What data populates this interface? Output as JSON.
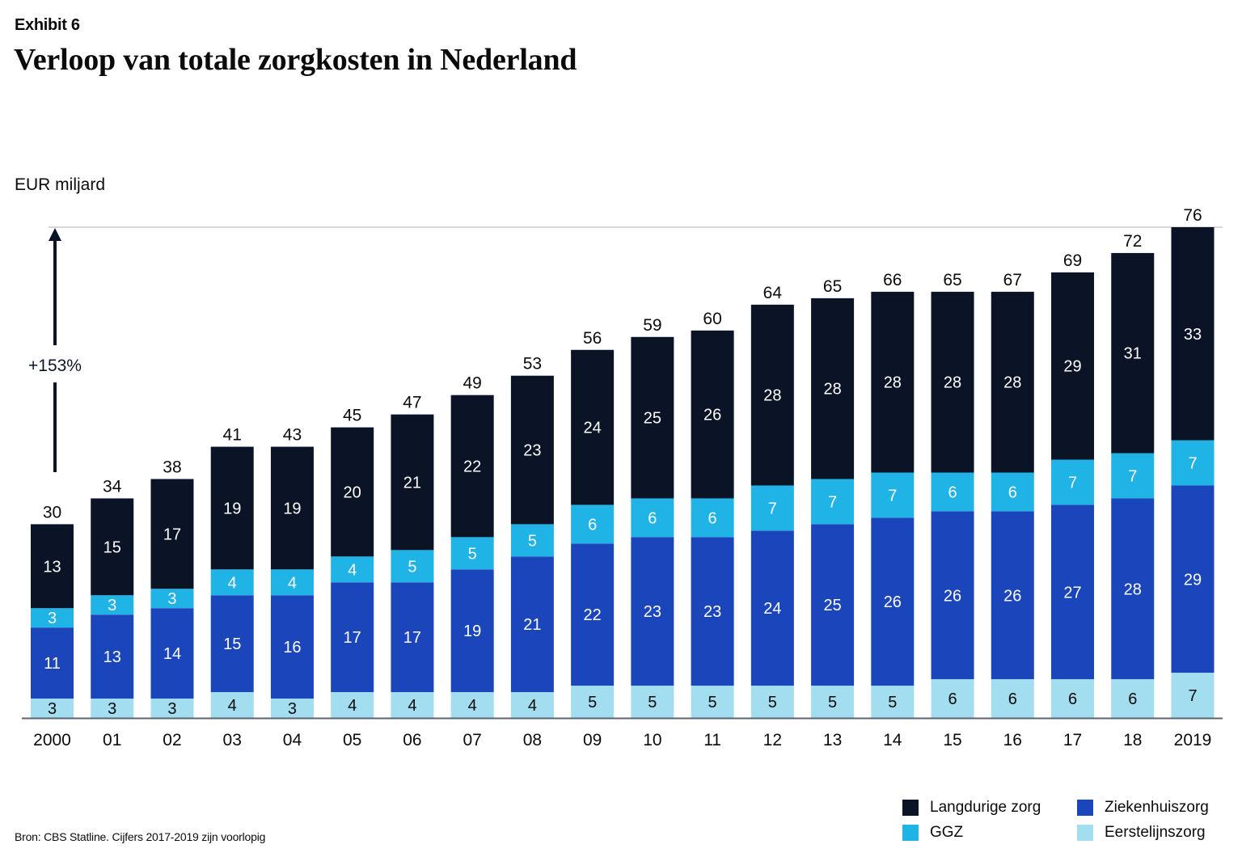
{
  "header": {
    "exhibit": "Exhibit 6",
    "title": "Verloop van totale zorgkosten in Nederland"
  },
  "footer": {
    "source": "Bron: CBS Statline. Cijfers 2017-2019 zijn voorlopig"
  },
  "chart_data": {
    "type": "bar",
    "stacked": true,
    "title": "Verloop van totale zorgkosten in Nederland",
    "xlabel": "",
    "ylabel": "EUR miljard",
    "ylim": [
      0,
      76
    ],
    "grid": false,
    "legend_position": "bottom-right",
    "categories": [
      "2000",
      "01",
      "02",
      "03",
      "04",
      "05",
      "06",
      "07",
      "08",
      "09",
      "10",
      "11",
      "12",
      "13",
      "14",
      "15",
      "16",
      "17",
      "18",
      "2019"
    ],
    "series": [
      {
        "name": "Eerstelijnszorg",
        "color": "#a2ddf0",
        "label_color": "#0b0b0b",
        "values": [
          3,
          3,
          3,
          4,
          3,
          4,
          4,
          4,
          4,
          5,
          5,
          5,
          5,
          5,
          5,
          6,
          6,
          6,
          6,
          7
        ]
      },
      {
        "name": "Ziekenhuiszorg",
        "color": "#1b45bb",
        "label_color": "#ffffff",
        "values": [
          11,
          13,
          14,
          15,
          16,
          17,
          17,
          19,
          21,
          22,
          23,
          23,
          24,
          25,
          26,
          26,
          26,
          27,
          28,
          29
        ]
      },
      {
        "name": "GGZ",
        "color": "#20b3e6",
        "label_color": "#ffffff",
        "values": [
          3,
          3,
          3,
          4,
          4,
          4,
          5,
          5,
          5,
          6,
          6,
          6,
          7,
          7,
          7,
          6,
          6,
          7,
          7,
          7
        ]
      },
      {
        "name": "Langdurige zorg",
        "color": "#0b1426",
        "label_color": "#ffffff",
        "values": [
          13,
          15,
          17,
          19,
          19,
          20,
          21,
          22,
          23,
          24,
          25,
          26,
          28,
          28,
          28,
          28,
          28,
          29,
          31,
          33
        ]
      }
    ],
    "totals": [
      30,
      34,
      38,
      41,
      43,
      45,
      47,
      49,
      53,
      56,
      59,
      60,
      64,
      65,
      66,
      65,
      67,
      69,
      72,
      76
    ],
    "annotation": {
      "text": "+153%",
      "from": "2000",
      "to": "2019"
    },
    "legend_order": [
      "Langdurige zorg",
      "Ziekenhuiszorg",
      "GGZ",
      "Eerstelijnszorg"
    ]
  }
}
